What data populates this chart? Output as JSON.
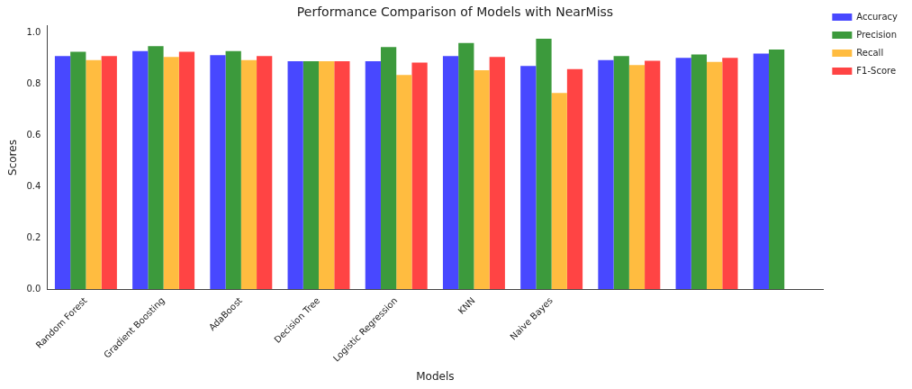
{
  "chart_data": {
    "type": "bar",
    "title": "Performance Comparison of Models with NearMiss",
    "xlabel": "Models",
    "ylabel": "Scores",
    "categories": [
      "Random Forest",
      "Gradient Boosting",
      "AdaBoost",
      "Decision Tree",
      "Logistic Regression",
      "KNN",
      "Naive Bayes",
      null,
      null,
      null
    ],
    "series": [
      {
        "name": "Accuracy",
        "color": "#4848ff",
        "values": [
          0.908,
          0.927,
          0.911,
          0.888,
          0.888,
          0.908,
          0.869,
          0.892,
          0.901,
          0.917
        ]
      },
      {
        "name": "Precision",
        "color": "#3c9a3c",
        "values": [
          0.924,
          0.946,
          0.927,
          0.888,
          0.943,
          0.959,
          0.975,
          0.908,
          0.914,
          0.933
        ]
      },
      {
        "name": "Recall",
        "color": "#ffbc40",
        "values": [
          0.892,
          0.904,
          0.892,
          0.888,
          0.834,
          0.853,
          0.764,
          0.873,
          0.885,
          null
        ]
      },
      {
        "name": "F1-Score",
        "color": "#ff4444",
        "values": [
          0.908,
          0.924,
          0.908,
          0.888,
          0.882,
          0.904,
          0.857,
          0.889,
          0.901,
          null
        ]
      }
    ],
    "ylim": [
      0,
      1.025
    ],
    "yticks": [
      {
        "value": 0,
        "label": "0.0"
      },
      {
        "value": 0.2,
        "label": "0.2"
      },
      {
        "value": 0.4,
        "label": "0.4"
      },
      {
        "value": 0.6,
        "label": "0.6"
      },
      {
        "value": 0.8,
        "label": "0.8"
      },
      {
        "value": 1,
        "label": "1.0"
      }
    ],
    "grid": false,
    "legend": "top right"
  }
}
